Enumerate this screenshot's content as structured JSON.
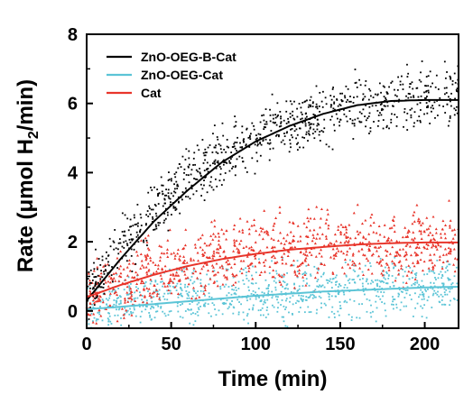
{
  "chart_data": {
    "type": "scatter",
    "xlabel": "Time (min)",
    "ylabel": "Rate (μmol H",
    "ylabel_subscript": "2",
    "ylabel_suffix": "/min)",
    "xlim": [
      0,
      220
    ],
    "ylim": [
      -0.5,
      8
    ],
    "xticks": [
      0,
      50,
      100,
      150,
      200
    ],
    "yticks": [
      0,
      2,
      4,
      6,
      8
    ],
    "xtick_labels": [
      "0",
      "50",
      "100",
      "150",
      "200"
    ],
    "ytick_labels": [
      "0",
      "2",
      "4",
      "6",
      "8"
    ],
    "legend_position": "top-left",
    "grid": false,
    "series": [
      {
        "name": "ZnO-OEG-B-Cat",
        "color": "#000000",
        "marker": "dot",
        "fit": {
          "x": [
            0,
            20,
            40,
            60,
            80,
            100,
            120,
            140,
            160,
            180,
            200,
            220
          ],
          "y": [
            0.3,
            1.5,
            2.6,
            3.5,
            4.3,
            4.9,
            5.35,
            5.7,
            5.95,
            6.07,
            6.1,
            6.1
          ]
        },
        "scatter_level": {
          "x": [
            0,
            10,
            20,
            30,
            40,
            50,
            60,
            70,
            80,
            90,
            100,
            110,
            120,
            130,
            140,
            150,
            160,
            170,
            180,
            190,
            200,
            210,
            220
          ],
          "y": [
            0.5,
            1.0,
            1.8,
            2.3,
            2.9,
            3.4,
            3.8,
            4.1,
            4.4,
            4.8,
            5.0,
            5.2,
            5.3,
            5.5,
            5.7,
            5.8,
            5.9,
            6.0,
            6.1,
            6.1,
            6.2,
            6.2,
            6.3
          ]
        },
        "spread": 0.6
      },
      {
        "name": "ZnO-OEG-Cat",
        "color": "#5bc4d6",
        "marker": "dot",
        "fit": {
          "x": [
            0,
            20,
            40,
            60,
            80,
            100,
            120,
            140,
            160,
            180,
            200,
            220
          ],
          "y": [
            0.05,
            0.12,
            0.2,
            0.28,
            0.36,
            0.44,
            0.5,
            0.56,
            0.6,
            0.64,
            0.68,
            0.7
          ]
        },
        "scatter_level": {
          "x": [
            0,
            50,
            100,
            150,
            220
          ],
          "y": [
            0.1,
            0.35,
            0.5,
            0.6,
            0.7
          ]
        },
        "spread": 0.55
      },
      {
        "name": "Cat",
        "color": "#e8352b",
        "marker": "triangle",
        "fit": {
          "x": [
            0,
            20,
            40,
            60,
            80,
            100,
            120,
            140,
            160,
            180,
            200,
            220
          ],
          "y": [
            0.4,
            0.75,
            1.05,
            1.3,
            1.5,
            1.65,
            1.77,
            1.85,
            1.92,
            1.96,
            1.98,
            1.98
          ]
        },
        "scatter_level": {
          "x": [
            0,
            50,
            100,
            150,
            220
          ],
          "y": [
            0.5,
            1.3,
            1.7,
            1.9,
            2.0
          ]
        },
        "spread": 0.7
      }
    ]
  }
}
